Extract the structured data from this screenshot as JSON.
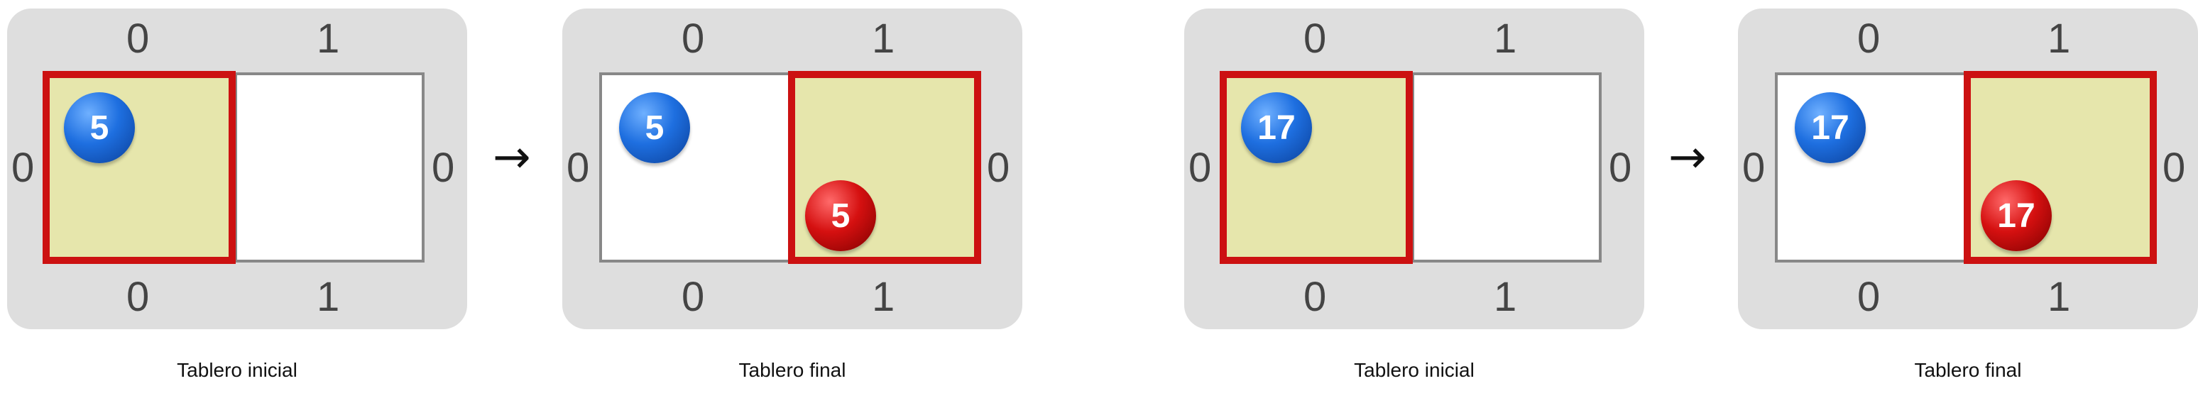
{
  "panels": [
    {
      "caption": "Tablero inicial",
      "ball": "5",
      "col_top": [
        "0",
        "1"
      ],
      "col_bottom": [
        "0",
        "1"
      ],
      "row_left": "0",
      "row_right": "0"
    },
    {
      "caption": "Tablero final",
      "ball": "5",
      "col_top": [
        "0",
        "1"
      ],
      "col_bottom": [
        "0",
        "1"
      ],
      "row_left": "0",
      "row_right": "0"
    },
    {
      "caption": "Tablero inicial",
      "ball": "17",
      "col_top": [
        "0",
        "1"
      ],
      "col_bottom": [
        "0",
        "1"
      ],
      "row_left": "0",
      "row_right": "0"
    },
    {
      "caption": "Tablero final",
      "ball": "17",
      "col_top": [
        "0",
        "1"
      ],
      "col_bottom": [
        "0",
        "1"
      ],
      "row_left": "0",
      "row_right": "0"
    }
  ],
  "arrow": "→",
  "colors": {
    "board": "#dedede",
    "highlight": "#cc1111",
    "active_cell": "#e6e6ac",
    "ball_start": "#1e6fe0",
    "ball_end": "#d51010"
  }
}
